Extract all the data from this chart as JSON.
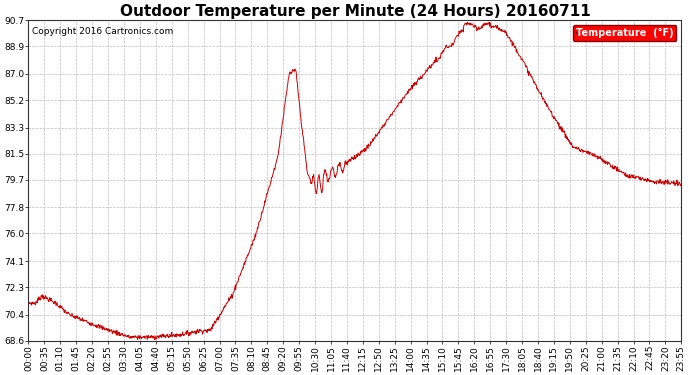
{
  "title": "Outdoor Temperature per Minute (24 Hours) 20160711",
  "copyright_text": "Copyright 2016 Cartronics.com",
  "legend_label": "Temperature  (°F)",
  "yticks": [
    68.6,
    70.4,
    72.3,
    74.1,
    76.0,
    77.8,
    79.7,
    81.5,
    83.3,
    85.2,
    87.0,
    88.9,
    90.7
  ],
  "ylim": [
    68.6,
    90.7
  ],
  "line_color": "#cc0000",
  "background_color": "#ffffff",
  "grid_color": "#bbbbbb",
  "title_fontsize": 11,
  "tick_fontsize": 6.5,
  "copyright_fontsize": 6.5,
  "xtick_labels": [
    "00:00",
    "00:35",
    "01:10",
    "01:45",
    "02:20",
    "02:55",
    "03:30",
    "04:05",
    "04:40",
    "05:15",
    "05:50",
    "06:25",
    "07:00",
    "07:35",
    "08:10",
    "08:45",
    "09:20",
    "09:55",
    "10:30",
    "11:05",
    "11:40",
    "12:15",
    "12:50",
    "13:25",
    "14:00",
    "14:35",
    "15:10",
    "15:45",
    "16:20",
    "16:55",
    "17:30",
    "18:05",
    "18:40",
    "19:15",
    "19:50",
    "20:25",
    "21:00",
    "21:35",
    "22:10",
    "22:45",
    "23:20",
    "23:55"
  ]
}
